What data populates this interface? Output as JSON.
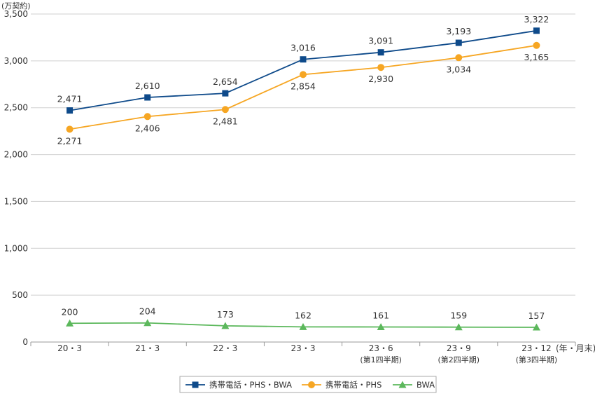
{
  "chart_data": {
    "type": "line",
    "unit_label": "(万契約)",
    "x_unit_label": "(年・月末)",
    "categories": [
      {
        "label": "20・3",
        "sub": ""
      },
      {
        "label": "21・3",
        "sub": ""
      },
      {
        "label": "22・3",
        "sub": ""
      },
      {
        "label": "23・3",
        "sub": ""
      },
      {
        "label": "23・6",
        "sub": "(第1四半期)"
      },
      {
        "label": "23・9",
        "sub": "(第2四半期)"
      },
      {
        "label": "23・12",
        "sub": "(第3四半期)"
      }
    ],
    "ylim": [
      0,
      3500
    ],
    "yticks": [
      0,
      500,
      1000,
      1500,
      2000,
      2500,
      3000,
      3500
    ],
    "ytick_labels": [
      "0",
      "500",
      "1,000",
      "1,500",
      "2,000",
      "2,500",
      "3,000",
      "3,500"
    ],
    "grid": true,
    "legend_position": "bottom-center",
    "series": [
      {
        "name": "携帯電話・PHS・BWA",
        "marker": "square",
        "color": "#0e4a8a",
        "values": [
          2471,
          2610,
          2654,
          3016,
          3091,
          3193,
          3322
        ],
        "labels": [
          "2,471",
          "2,610",
          "2,654",
          "3,016",
          "3,091",
          "3,193",
          "3,322"
        ],
        "label_position": "above"
      },
      {
        "name": "携帯電話・PHS",
        "marker": "circle",
        "color": "#f6a623",
        "values": [
          2271,
          2406,
          2481,
          2854,
          2930,
          3034,
          3165
        ],
        "labels": [
          "2,271",
          "2,406",
          "2,481",
          "2,854",
          "2,930",
          "3,034",
          "3,165"
        ],
        "label_position": "below"
      },
      {
        "name": "BWA",
        "marker": "triangle",
        "color": "#5cb85c",
        "values": [
          200,
          204,
          173,
          162,
          161,
          159,
          157
        ],
        "labels": [
          "200",
          "204",
          "173",
          "162",
          "161",
          "159",
          "157"
        ],
        "label_position": "above"
      }
    ]
  }
}
